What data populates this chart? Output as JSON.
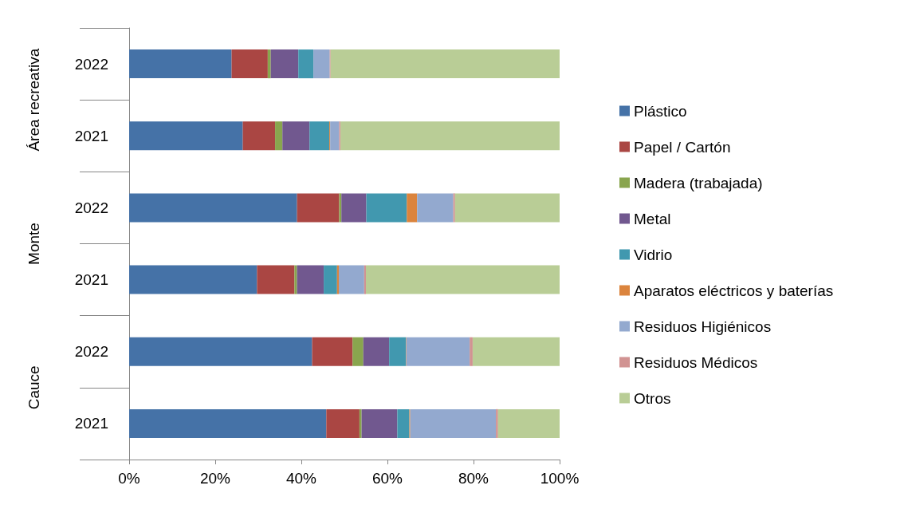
{
  "chart_data": {
    "type": "bar",
    "orientation": "horizontal",
    "stacked": true,
    "categories": [
      "2022",
      "2021",
      "2022",
      "2021",
      "2022",
      "2021"
    ],
    "annotations": [
      "Área recreativa",
      "Monte",
      "Cauce"
    ],
    "series": [
      {
        "name": "Plástico",
        "color": "#4572a7",
        "values": [
          23.8,
          26.4,
          39.0,
          29.7,
          42.5,
          45.8
        ]
      },
      {
        "name": "Papel / Cartón",
        "color": "#aa4643",
        "values": [
          8.4,
          7.5,
          9.8,
          8.7,
          9.4,
          7.7
        ]
      },
      {
        "name": "Madera (trabajada)",
        "color": "#89a54e",
        "values": [
          0.7,
          1.7,
          0.5,
          0.6,
          2.5,
          0.5
        ]
      },
      {
        "name": "Metal",
        "color": "#71588f",
        "values": [
          6.4,
          6.3,
          5.8,
          6.2,
          6.0,
          8.3
        ]
      },
      {
        "name": "Vidrio",
        "color": "#4198af",
        "values": [
          3.5,
          4.6,
          9.4,
          3.1,
          3.9,
          2.8
        ]
      },
      {
        "name": "Aparatos eléctricos y baterías",
        "color": "#db843d",
        "values": [
          0,
          0.2,
          2.4,
          0.4,
          0.1,
          0.2
        ]
      },
      {
        "name": "Residuos Higiénicos",
        "color": "#93a9cf",
        "values": [
          3.8,
          2.1,
          8.4,
          5.9,
          14.7,
          19.9
        ]
      },
      {
        "name": "Residuos Médicos",
        "color": "#d19392",
        "values": [
          0.2,
          0.3,
          0.4,
          0.4,
          0.7,
          0.5
        ]
      },
      {
        "name": "Otros",
        "color": "#b9cd96",
        "values": [
          53.2,
          50.9,
          24.3,
          45.0,
          20.2,
          14.3
        ]
      }
    ],
    "xlim": [
      0,
      100
    ],
    "xticks": [
      {
        "value": 0,
        "label": "0%"
      },
      {
        "value": 20,
        "label": "20%"
      },
      {
        "value": 40,
        "label": "40%"
      },
      {
        "value": 60,
        "label": "60%"
      },
      {
        "value": 80,
        "label": "80%"
      },
      {
        "value": 100,
        "label": "100%"
      }
    ],
    "grid": false,
    "legend": "right"
  }
}
